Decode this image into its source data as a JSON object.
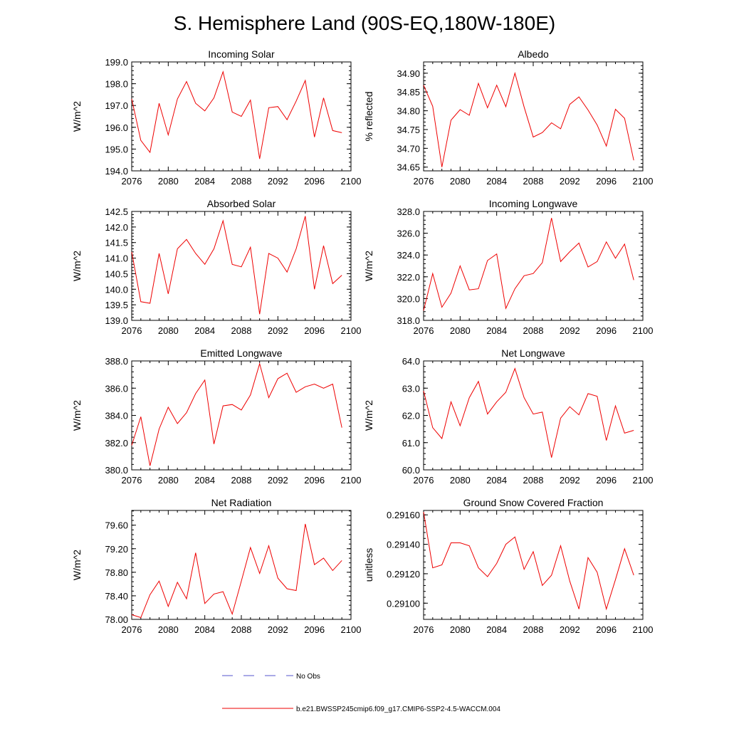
{
  "title": "S. Hemisphere Land (90S-EQ,180W-180E)",
  "legend": {
    "items": [
      {
        "label": "No Obs",
        "style": "dashed",
        "color": "#5555cc"
      },
      {
        "label": "b.e21.BWSSP245cmip6.f09_g17.CMIP6-SSP2-4.5-WACCM.004",
        "style": "solid",
        "color": "#ee0000"
      }
    ]
  },
  "chart_data": [
    {
      "type": "line",
      "title": "Incoming Solar",
      "ylabel": "W/m^2",
      "xlim": [
        2076,
        2100
      ],
      "ylim": [
        194.0,
        199.0
      ],
      "yticks": [
        "194.0",
        "195.0",
        "196.0",
        "197.0",
        "198.0",
        "199.0"
      ],
      "xticks": [
        "2076",
        "2080",
        "2084",
        "2088",
        "2092",
        "2096",
        "2100"
      ],
      "x": [
        2076,
        2077,
        2078,
        2079,
        2080,
        2081,
        2082,
        2083,
        2084,
        2085,
        2086,
        2087,
        2088,
        2089,
        2090,
        2091,
        2092,
        2093,
        2094,
        2095,
        2096,
        2097,
        2098,
        2099
      ],
      "values": [
        197.3,
        195.4,
        194.85,
        197.1,
        195.65,
        197.3,
        198.1,
        197.1,
        196.75,
        197.35,
        198.55,
        196.7,
        196.5,
        197.25,
        194.55,
        196.9,
        196.95,
        196.35,
        197.2,
        198.15,
        195.55,
        197.35,
        195.85,
        195.75
      ]
    },
    {
      "type": "line",
      "title": "Albedo",
      "ylabel": "% reflected",
      "xlim": [
        2076,
        2100
      ],
      "ylim": [
        34.64,
        34.93
      ],
      "yticks": [
        "34.65",
        "34.70",
        "34.75",
        "34.80",
        "34.85",
        "34.90"
      ],
      "xticks": [
        "2076",
        "2080",
        "2084",
        "2088",
        "2092",
        "2096",
        "2100"
      ],
      "x": [
        2076,
        2077,
        2078,
        2079,
        2080,
        2081,
        2082,
        2083,
        2084,
        2085,
        2086,
        2087,
        2088,
        2089,
        2090,
        2091,
        2092,
        2093,
        2094,
        2095,
        2096,
        2097,
        2098,
        2099
      ],
      "values": [
        34.868,
        34.812,
        34.65,
        34.775,
        34.803,
        34.788,
        34.873,
        34.808,
        34.868,
        34.811,
        34.9,
        34.81,
        34.73,
        34.742,
        34.768,
        34.752,
        34.817,
        34.837,
        34.802,
        34.762,
        34.706,
        34.804,
        34.78,
        34.668
      ]
    },
    {
      "type": "line",
      "title": "Absorbed Solar",
      "ylabel": "W/m^2",
      "xlim": [
        2076,
        2100
      ],
      "ylim": [
        139.0,
        142.5
      ],
      "yticks": [
        "139.0",
        "139.5",
        "140.0",
        "140.5",
        "141.0",
        "141.5",
        "142.0",
        "142.5"
      ],
      "xticks": [
        "2076",
        "2080",
        "2084",
        "2088",
        "2092",
        "2096",
        "2100"
      ],
      "x": [
        2076,
        2077,
        2078,
        2079,
        2080,
        2081,
        2082,
        2083,
        2084,
        2085,
        2086,
        2087,
        2088,
        2089,
        2090,
        2091,
        2092,
        2093,
        2094,
        2095,
        2096,
        2097,
        2098,
        2099
      ],
      "values": [
        141.2,
        139.6,
        139.55,
        141.15,
        139.85,
        141.3,
        141.6,
        141.15,
        140.8,
        141.3,
        142.2,
        140.8,
        140.72,
        141.35,
        139.2,
        141.15,
        141.0,
        140.55,
        141.3,
        142.35,
        140.0,
        141.4,
        140.18,
        140.45
      ]
    },
    {
      "type": "line",
      "title": "Incoming Longwave",
      "ylabel": "W/m^2",
      "xlim": [
        2076,
        2100
      ],
      "ylim": [
        318.0,
        328.0
      ],
      "yticks": [
        "318.0",
        "320.0",
        "322.0",
        "324.0",
        "326.0",
        "328.0"
      ],
      "xticks": [
        "2076",
        "2080",
        "2084",
        "2088",
        "2092",
        "2096",
        "2100"
      ],
      "x": [
        2076,
        2077,
        2078,
        2079,
        2080,
        2081,
        2082,
        2083,
        2084,
        2085,
        2086,
        2087,
        2088,
        2089,
        2090,
        2091,
        2092,
        2093,
        2094,
        2095,
        2096,
        2097,
        2098,
        2099
      ],
      "values": [
        318.9,
        322.3,
        319.2,
        320.5,
        323.0,
        320.8,
        320.9,
        323.5,
        324.1,
        319.1,
        320.9,
        322.1,
        322.3,
        323.3,
        327.4,
        323.4,
        324.3,
        325.1,
        322.9,
        323.4,
        325.2,
        323.7,
        325.0,
        321.7
      ]
    },
    {
      "type": "line",
      "title": "Emitted Longwave",
      "ylabel": "W/m^2",
      "xlim": [
        2076,
        2100
      ],
      "ylim": [
        380.0,
        388.0
      ],
      "yticks": [
        "380.0",
        "382.0",
        "384.0",
        "386.0",
        "388.0"
      ],
      "xticks": [
        "2076",
        "2080",
        "2084",
        "2088",
        "2092",
        "2096",
        "2100"
      ],
      "x": [
        2076,
        2077,
        2078,
        2079,
        2080,
        2081,
        2082,
        2083,
        2084,
        2085,
        2086,
        2087,
        2088,
        2089,
        2090,
        2091,
        2092,
        2093,
        2094,
        2095,
        2096,
        2097,
        2098,
        2099
      ],
      "values": [
        381.8,
        383.9,
        380.3,
        383.0,
        384.6,
        383.4,
        384.2,
        385.6,
        386.6,
        381.9,
        384.7,
        384.8,
        384.4,
        385.5,
        387.8,
        385.3,
        386.7,
        387.1,
        385.7,
        386.1,
        386.3,
        386.0,
        386.3,
        383.1
      ]
    },
    {
      "type": "line",
      "title": "Net Longwave",
      "ylabel": "W/m^2",
      "xlim": [
        2076,
        2100
      ],
      "ylim": [
        60.0,
        64.0
      ],
      "yticks": [
        "60.0",
        "61.0",
        "62.0",
        "63.0",
        "64.0"
      ],
      "xticks": [
        "2076",
        "2080",
        "2084",
        "2088",
        "2092",
        "2096",
        "2100"
      ],
      "x": [
        2076,
        2077,
        2078,
        2079,
        2080,
        2081,
        2082,
        2083,
        2084,
        2085,
        2086,
        2087,
        2088,
        2089,
        2090,
        2091,
        2092,
        2093,
        2094,
        2095,
        2096,
        2097,
        2098,
        2099
      ],
      "values": [
        62.9,
        61.55,
        61.15,
        62.5,
        61.62,
        62.65,
        63.25,
        62.05,
        62.5,
        62.85,
        63.72,
        62.65,
        62.05,
        62.12,
        60.45,
        61.9,
        62.32,
        62.02,
        62.8,
        62.7,
        61.08,
        62.35,
        61.35,
        61.45
      ]
    },
    {
      "type": "line",
      "title": "Net Radiation",
      "ylabel": "W/m^2",
      "xlim": [
        2076,
        2100
      ],
      "ylim": [
        78.0,
        79.85
      ],
      "yticks": [
        "78.00",
        "78.40",
        "78.80",
        "79.20",
        "79.60"
      ],
      "xticks": [
        "2076",
        "2080",
        "2084",
        "2088",
        "2092",
        "2096",
        "2100"
      ],
      "x": [
        2076,
        2077,
        2078,
        2079,
        2080,
        2081,
        2082,
        2083,
        2084,
        2085,
        2086,
        2087,
        2088,
        2089,
        2090,
        2091,
        2092,
        2093,
        2094,
        2095,
        2096,
        2097,
        2098,
        2099
      ],
      "values": [
        78.08,
        78.03,
        78.42,
        78.65,
        78.22,
        78.63,
        78.35,
        79.13,
        78.27,
        78.43,
        78.47,
        78.09,
        78.65,
        79.22,
        78.78,
        79.25,
        78.7,
        78.52,
        78.49,
        79.62,
        78.93,
        79.04,
        78.83,
        79.0
      ]
    },
    {
      "type": "line",
      "title": "Ground Snow Covered Fraction",
      "ylabel": "unitless",
      "xlim": [
        2076,
        2100
      ],
      "ylim": [
        0.29089,
        0.29163
      ],
      "yticks": [
        "0.29100",
        "0.29120",
        "0.29140",
        "0.29160"
      ],
      "xticks": [
        "2076",
        "2080",
        "2084",
        "2088",
        "2092",
        "2096",
        "2100"
      ],
      "x": [
        2076,
        2077,
        2078,
        2079,
        2080,
        2081,
        2082,
        2083,
        2084,
        2085,
        2086,
        2087,
        2088,
        2089,
        2090,
        2091,
        2092,
        2093,
        2094,
        2095,
        2096,
        2097,
        2098,
        2099
      ],
      "values": [
        0.29162,
        0.29124,
        0.29126,
        0.29141,
        0.29141,
        0.29139,
        0.29124,
        0.29118,
        0.29127,
        0.2914,
        0.29145,
        0.29123,
        0.29135,
        0.29112,
        0.29119,
        0.29139,
        0.29115,
        0.29096,
        0.29131,
        0.29121,
        0.29096,
        0.29116,
        0.29137,
        0.29119
      ]
    }
  ]
}
